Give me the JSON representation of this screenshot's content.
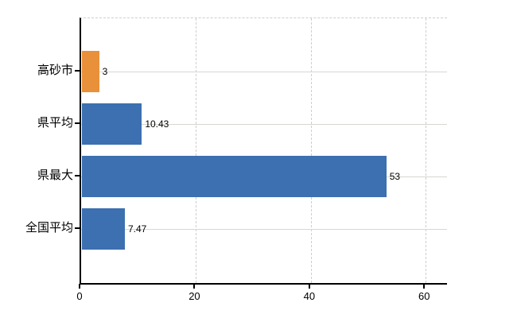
{
  "chart_data": {
    "type": "bar",
    "orientation": "horizontal",
    "title": "",
    "xlabel": "",
    "ylabel": "",
    "categories": [
      "高砂市",
      "県平均",
      "県最大",
      "全国平均"
    ],
    "values": [
      3,
      10.43,
      53,
      7.47
    ],
    "value_labels": [
      "3",
      "10.43",
      "53",
      "7.47"
    ],
    "bar_colors": [
      "#e8913a",
      "#3c70b0",
      "#3c70b0",
      "#3c70b0"
    ],
    "x_ticks": [
      0,
      20,
      40,
      60
    ],
    "x_tick_labels": [
      "0",
      "20",
      "40",
      "60"
    ],
    "xlim": [
      0,
      63.7
    ],
    "grid": "vertical-dashed-and-horizontal-solid",
    "legend": "none",
    "highlight_color": "#e8913a",
    "default_color": "#3c70b0",
    "axis_color": "#000000",
    "gridline_color": "#d4d2cc",
    "background_color": "#ffffff"
  }
}
